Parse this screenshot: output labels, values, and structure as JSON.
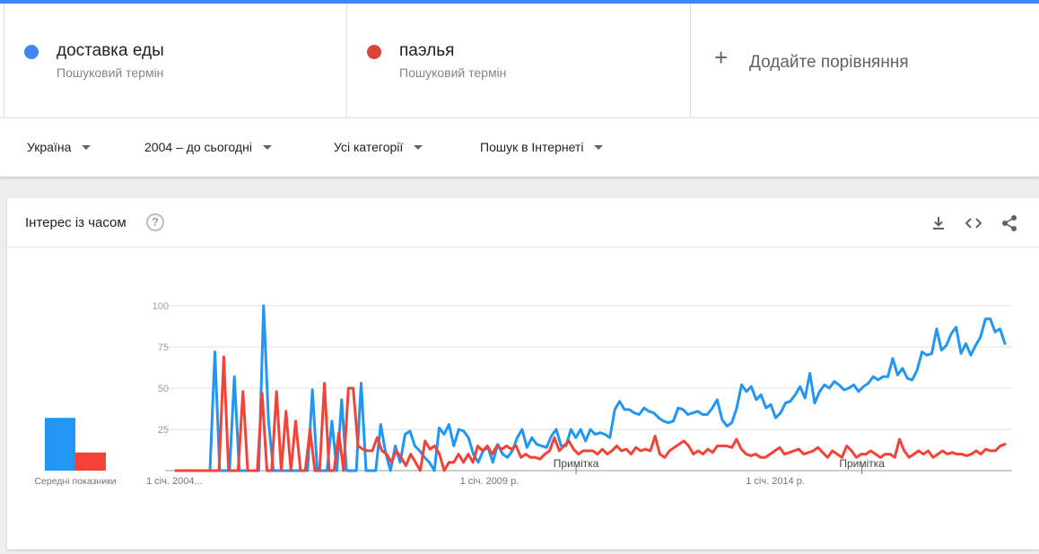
{
  "terms": [
    {
      "name": "доставка еды",
      "subtitle": "Пошуковий термін",
      "color": "#4285f4"
    },
    {
      "name": "паэлья",
      "subtitle": "Пошуковий термін",
      "color": "#db4437"
    }
  ],
  "add_comparison": "Додайте порівняння",
  "filters": {
    "region": "Україна",
    "period": "2004 – до сьогодні",
    "category": "Усі категорії",
    "search_type": "Пошук в Інтернеті"
  },
  "card": {
    "title": "Інтерес із часом",
    "help": "?",
    "icons": [
      "download-icon",
      "embed-code-icon",
      "share-icon"
    ]
  },
  "chart_data": {
    "type": "line",
    "ylim": [
      0,
      100
    ],
    "y_ticks": [
      25,
      50,
      75,
      100
    ],
    "x_tick_labels": [
      {
        "label": "1 січ. 2004...",
        "x": 2004.0
      },
      {
        "label": "1 січ. 2009 р.",
        "x": 2009.0
      },
      {
        "label": "1 січ. 2014 р.",
        "x": 2014.0
      }
    ],
    "notes": [
      {
        "label": "Примітка",
        "x": 2011.0
      },
      {
        "label": "Примітка",
        "x": 2016.0
      }
    ],
    "x_range": [
      2004.0,
      2018.5
    ],
    "averages": {
      "label": "Середні показники",
      "values": [
        {
          "term": "доставка еды",
          "value": 32
        },
        {
          "term": "паэлья",
          "value": 11
        }
      ]
    },
    "series": [
      {
        "name": "доставка еды",
        "color": "#2196f3",
        "values": [
          0,
          0,
          0,
          0,
          0,
          0,
          0,
          0,
          72,
          0,
          0,
          0,
          57,
          0,
          0,
          0,
          0,
          0,
          100,
          30,
          0,
          0,
          0,
          0,
          0,
          0,
          0,
          0,
          49,
          0,
          0,
          0,
          30,
          0,
          43,
          0,
          0,
          0,
          53,
          0,
          0,
          0,
          28,
          11,
          0,
          15,
          5,
          22,
          24,
          15,
          12,
          8,
          5,
          0,
          26,
          22,
          28,
          15,
          25,
          24,
          20,
          10,
          5,
          12,
          14,
          5,
          16,
          10,
          8,
          12,
          20,
          25,
          14,
          20,
          16,
          15,
          14,
          21,
          25,
          15,
          15,
          25,
          20,
          25,
          18,
          25,
          22,
          23,
          22,
          20,
          37,
          42,
          37,
          37,
          35,
          34,
          38,
          36,
          35,
          32,
          30,
          29,
          30,
          38,
          37,
          34,
          35,
          36,
          34,
          34,
          38,
          43,
          31,
          27,
          29,
          38,
          52,
          48,
          51,
          43,
          46,
          38,
          40,
          32,
          35,
          41,
          42,
          46,
          51,
          44,
          59,
          41,
          48,
          52,
          50,
          54,
          52,
          49,
          50,
          52,
          48,
          51,
          53,
          57,
          55,
          57,
          57,
          68,
          58,
          62,
          56,
          55,
          61,
          72,
          70,
          71,
          86,
          73,
          76,
          83,
          87,
          71,
          77,
          70,
          76,
          81,
          92,
          92,
          84,
          86,
          77
        ]
      },
      {
        "name": "паэлья",
        "color": "#f44336",
        "values": [
          0,
          0,
          0,
          0,
          0,
          0,
          0,
          0,
          0,
          0,
          69,
          0,
          0,
          0,
          48,
          0,
          0,
          0,
          47,
          0,
          0,
          48,
          0,
          36,
          0,
          30,
          0,
          0,
          25,
          0,
          0,
          53,
          0,
          0,
          23,
          0,
          50,
          50,
          15,
          13,
          12,
          12,
          20,
          12,
          10,
          5,
          12,
          8,
          3,
          10,
          5,
          0,
          18,
          13,
          15,
          10,
          0,
          5,
          5,
          10,
          5,
          10,
          5,
          15,
          12,
          15,
          10,
          15,
          13,
          15,
          13,
          15,
          8,
          10,
          8,
          8,
          7,
          10,
          12,
          20,
          12,
          15,
          18,
          13,
          10,
          12,
          12,
          12,
          10,
          13,
          10,
          12,
          15,
          12,
          13,
          10,
          14,
          12,
          13,
          12,
          21,
          10,
          8,
          12,
          14,
          16,
          18,
          15,
          10,
          12,
          10,
          13,
          11,
          15,
          15,
          15,
          14,
          19,
          13,
          10,
          9,
          10,
          8,
          8,
          10,
          12,
          14,
          10,
          11,
          12,
          13,
          10,
          11,
          12,
          14,
          11,
          8,
          12,
          10,
          8,
          15,
          12,
          8,
          10,
          10,
          12,
          10,
          8,
          10,
          10,
          8,
          19,
          12,
          8,
          10,
          12,
          10,
          12,
          8,
          10,
          12,
          10,
          11,
          10,
          10,
          9,
          10,
          12,
          10,
          13,
          12,
          12,
          15,
          16
        ]
      }
    ]
  }
}
